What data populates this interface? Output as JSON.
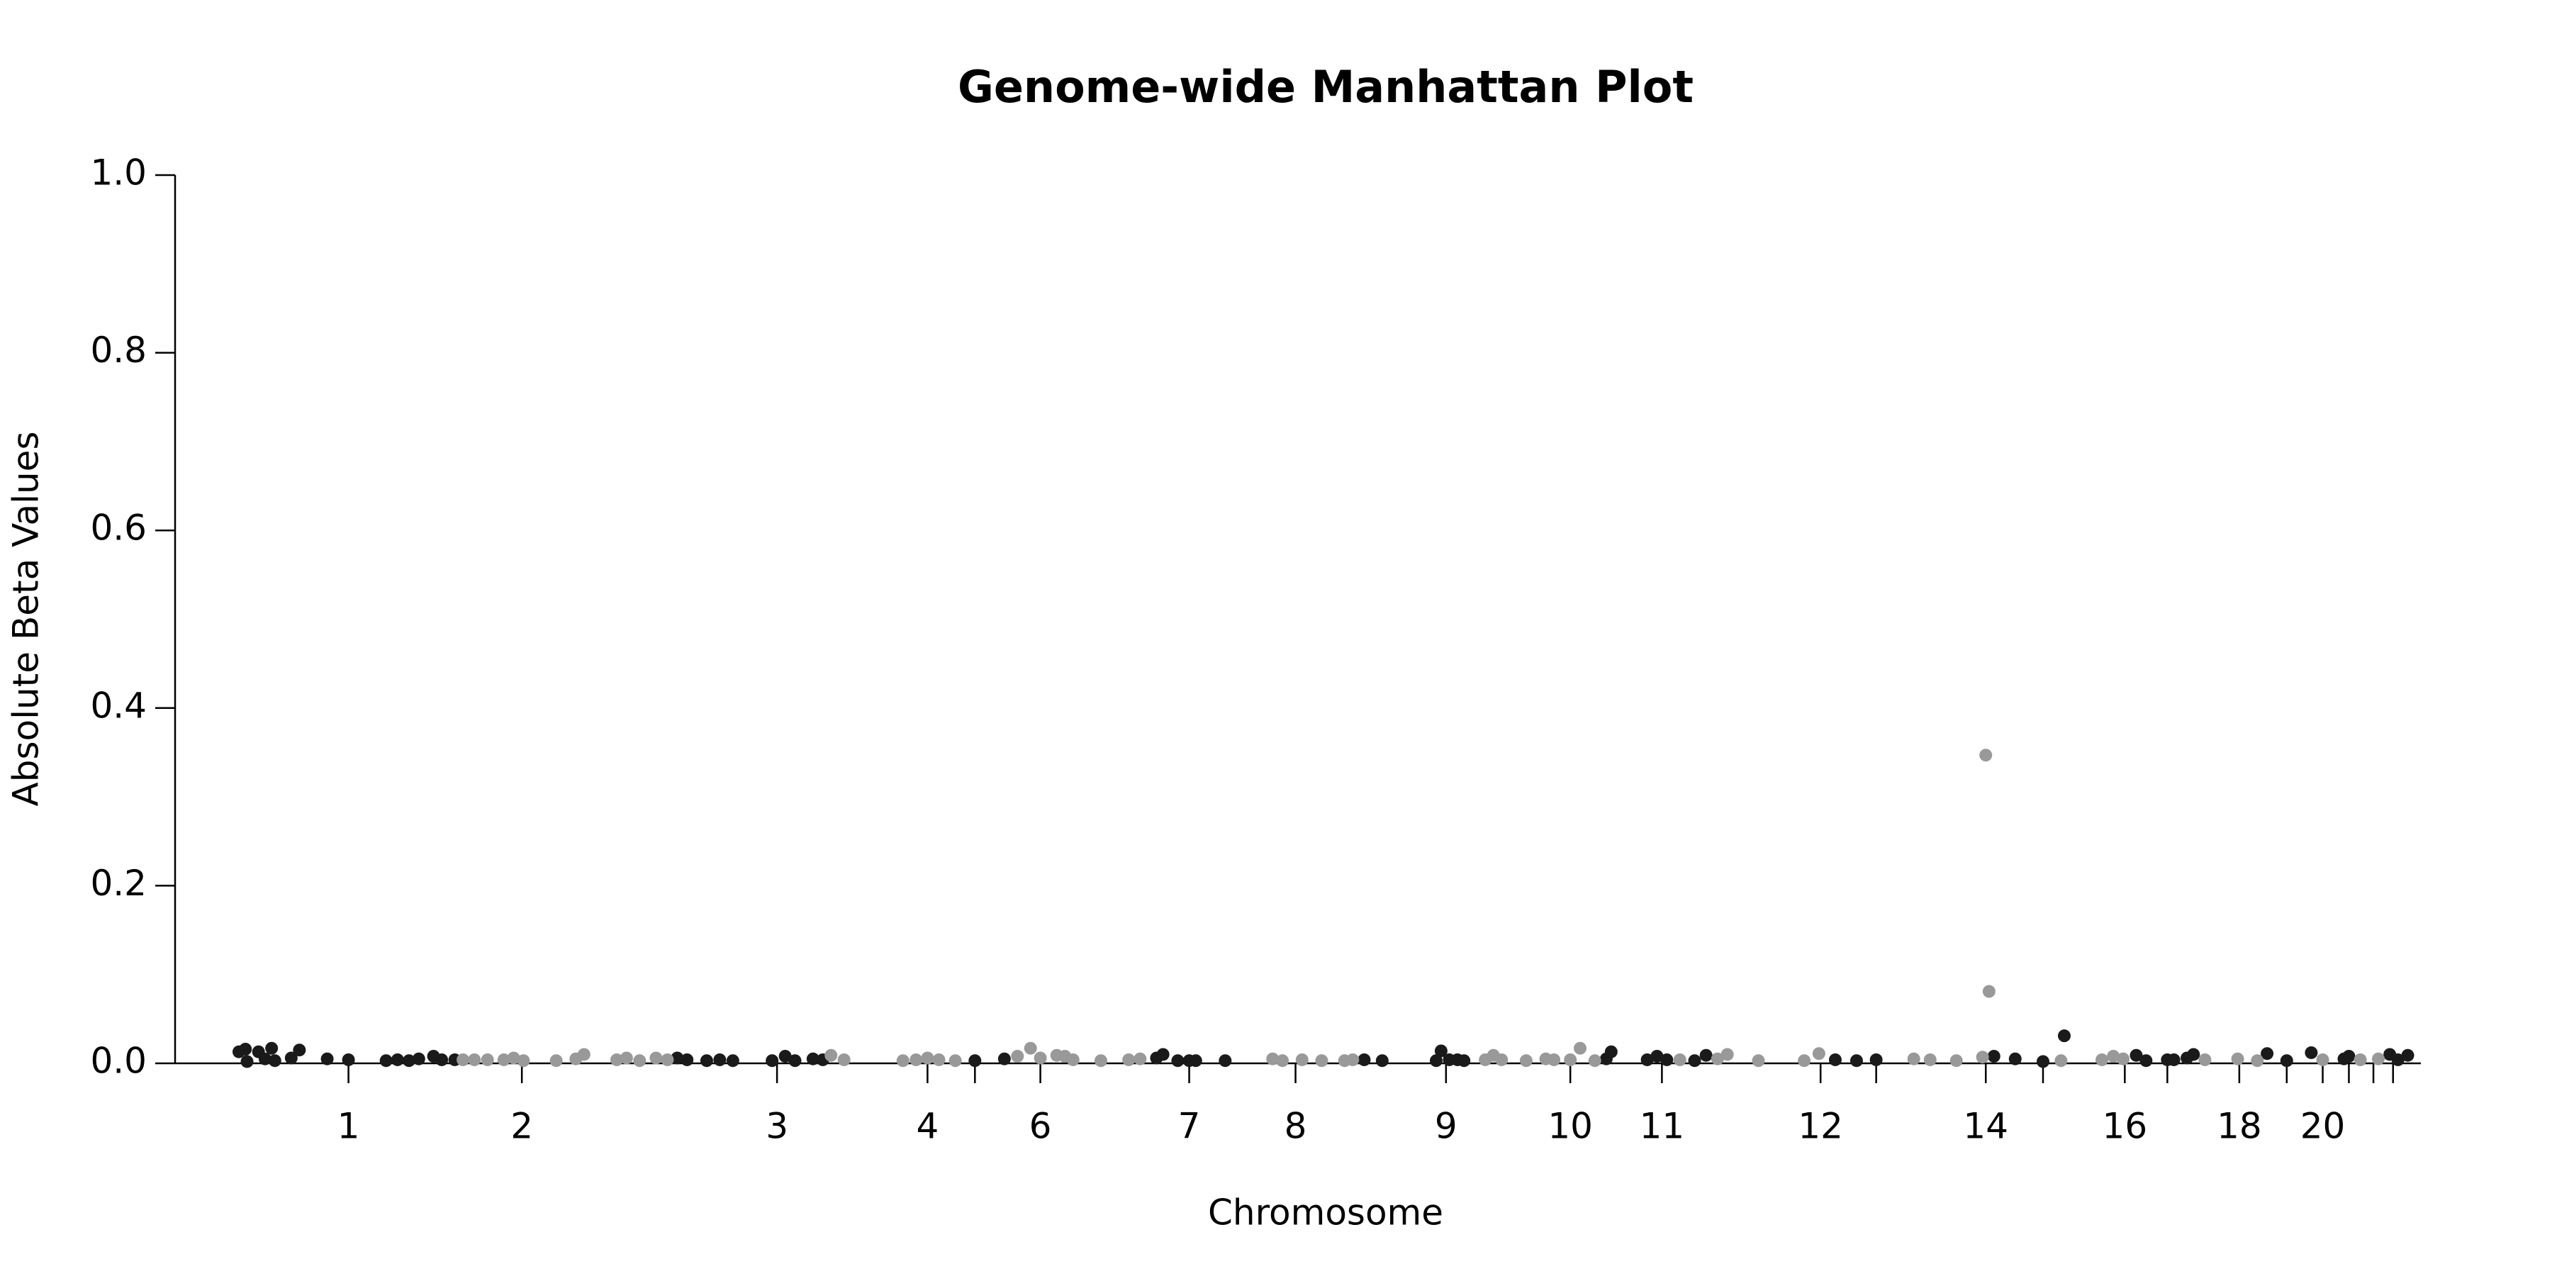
{
  "chart_data": {
    "type": "scatter",
    "title": "Genome-wide Manhattan Plot",
    "xlabel": "Chromosome",
    "ylabel": "Absolute Beta Values",
    "xlim": [
      107,
      1480
    ],
    "ylim": [
      0,
      1
    ],
    "yticks": [
      {
        "value": 0,
        "label": "0.0"
      },
      0.2,
      0.4,
      0.6,
      0.8,
      {
        "value": 1,
        "label": "1.0"
      }
    ],
    "xticks": [
      {
        "value": 213,
        "label": "1"
      },
      {
        "value": 319,
        "label": "2"
      },
      {
        "value": 475,
        "label": "3"
      },
      {
        "value": 567,
        "label": "4"
      },
      {
        "value": 636,
        "label": "6"
      },
      {
        "value": 727,
        "label": "7"
      },
      {
        "value": 792,
        "label": "8"
      },
      {
        "value": 884,
        "label": "9"
      },
      {
        "value": 960,
        "label": "10"
      },
      {
        "value": 1016,
        "label": "11"
      },
      {
        "value": 1113,
        "label": "12"
      },
      {
        "value": 1214,
        "label": "14"
      },
      {
        "value": 1299,
        "label": "16"
      },
      {
        "value": 1369,
        "label": "18"
      },
      {
        "value": 1420,
        "label": "20"
      }
    ],
    "xticks_minor": [
      596,
      1147,
      1249,
      1325,
      1398,
      1436,
      1451,
      1463
    ],
    "series": [
      {
        "color": "#1a1a1a",
        "x": [
          146,
          150,
          151,
          158,
          162,
          166,
          168,
          178,
          183,
          200,
          213,
          236,
          243,
          250,
          256,
          265,
          270,
          278,
          414,
          420,
          432,
          440,
          448,
          472,
          480,
          486,
          497,
          503,
          596,
          614,
          707,
          711,
          720,
          727,
          731,
          749,
          834,
          845,
          878,
          881,
          886,
          891,
          895,
          982,
          985,
          1007,
          1013,
          1019,
          1036,
          1043,
          1122,
          1135,
          1147,
          1219,
          1232,
          1249,
          1262,
          1306,
          1312,
          1325,
          1329,
          1337,
          1341,
          1386,
          1398,
          1413,
          1433,
          1436,
          1461,
          1466,
          1472
        ],
        "values": [
          0.013,
          0.016,
          0.002,
          0.013,
          0.005,
          0.017,
          0.003,
          0.006,
          0.015,
          0.005,
          0.004,
          0.003,
          0.004,
          0.003,
          0.005,
          0.008,
          0.004,
          0.004,
          0.006,
          0.004,
          0.003,
          0.004,
          0.003,
          0.003,
          0.008,
          0.003,
          0.005,
          0.004,
          0.003,
          0.005,
          0.006,
          0.01,
          0.003,
          0.003,
          0.003,
          0.003,
          0.004,
          0.003,
          0.003,
          0.014,
          0.004,
          0.004,
          0.003,
          0.005,
          0.013,
          0.004,
          0.008,
          0.004,
          0.003,
          0.009,
          0.004,
          0.003,
          0.004,
          0.008,
          0.005,
          0.002,
          0.031,
          0.009,
          0.003,
          0.004,
          0.004,
          0.006,
          0.01,
          0.011,
          0.003,
          0.012,
          0.005,
          0.008,
          0.01,
          0.004,
          0.009
        ]
      },
      {
        "color": "#999999",
        "x": [
          283,
          290,
          298,
          308,
          314,
          320,
          340,
          352,
          357,
          377,
          383,
          391,
          401,
          408,
          508,
          516,
          552,
          560,
          567,
          574,
          584,
          622,
          630,
          636,
          646,
          651,
          656,
          673,
          690,
          697,
          778,
          784,
          796,
          808,
          822,
          827,
          908,
          913,
          918,
          933,
          945,
          950,
          960,
          966,
          975,
          1027,
          1050,
          1056,
          1075,
          1103,
          1112,
          1170,
          1180,
          1196,
          1212,
          1214,
          1216,
          1260,
          1285,
          1292,
          1298,
          1348,
          1368,
          1380,
          1420,
          1443,
          1454
        ],
        "values": [
          0.004,
          0.004,
          0.004,
          0.004,
          0.006,
          0.003,
          0.003,
          0.005,
          0.01,
          0.004,
          0.006,
          0.003,
          0.006,
          0.004,
          0.009,
          0.004,
          0.003,
          0.004,
          0.006,
          0.004,
          0.003,
          0.008,
          0.017,
          0.006,
          0.009,
          0.008,
          0.004,
          0.003,
          0.004,
          0.005,
          0.005,
          0.003,
          0.004,
          0.003,
          0.003,
          0.004,
          0.004,
          0.009,
          0.004,
          0.003,
          0.005,
          0.004,
          0.004,
          0.017,
          0.003,
          0.004,
          0.005,
          0.01,
          0.003,
          0.003,
          0.011,
          0.005,
          0.004,
          0.003,
          0.007,
          0.347,
          0.081,
          0.003,
          0.004,
          0.008,
          0.005,
          0.004,
          0.005,
          0.003,
          0.004,
          0.004,
          0.005
        ]
      }
    ]
  }
}
